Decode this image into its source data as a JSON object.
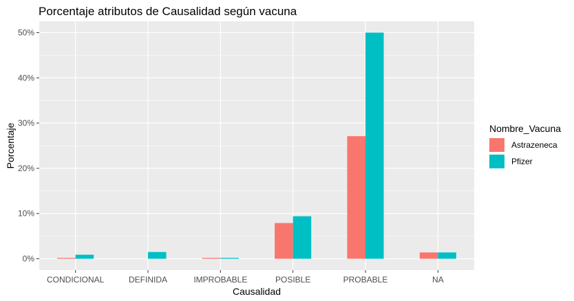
{
  "chart_data": {
    "type": "bar",
    "title": "Porcentaje atributos de Causalidad según vacuna",
    "xlabel": "Causalidad",
    "ylabel": "Porcentaje",
    "categories": [
      "CONDICIONAL",
      "DEFINIDA",
      "IMPROBABLE",
      "POSIBLE",
      "PROBABLE",
      "NA"
    ],
    "series": [
      {
        "name": "Astrazeneca",
        "color": "#F8766D",
        "values": [
          0.2,
          0.0,
          0.2,
          7.9,
          27.1,
          1.4
        ]
      },
      {
        "name": "Pfizer",
        "color": "#00BFC4",
        "values": [
          0.9,
          1.5,
          0.2,
          9.4,
          50.0,
          1.4
        ]
      }
    ],
    "ylim": [
      -2.5,
      52.5
    ],
    "yticks": [
      0,
      10,
      20,
      30,
      40,
      50
    ],
    "ytick_labels": [
      "0%",
      "10%",
      "20%",
      "30%",
      "40%",
      "50%"
    ],
    "legend": {
      "title": "Nombre_Vacuna",
      "position": "right"
    },
    "grid": true,
    "panel_background": "#EBEBEB"
  }
}
